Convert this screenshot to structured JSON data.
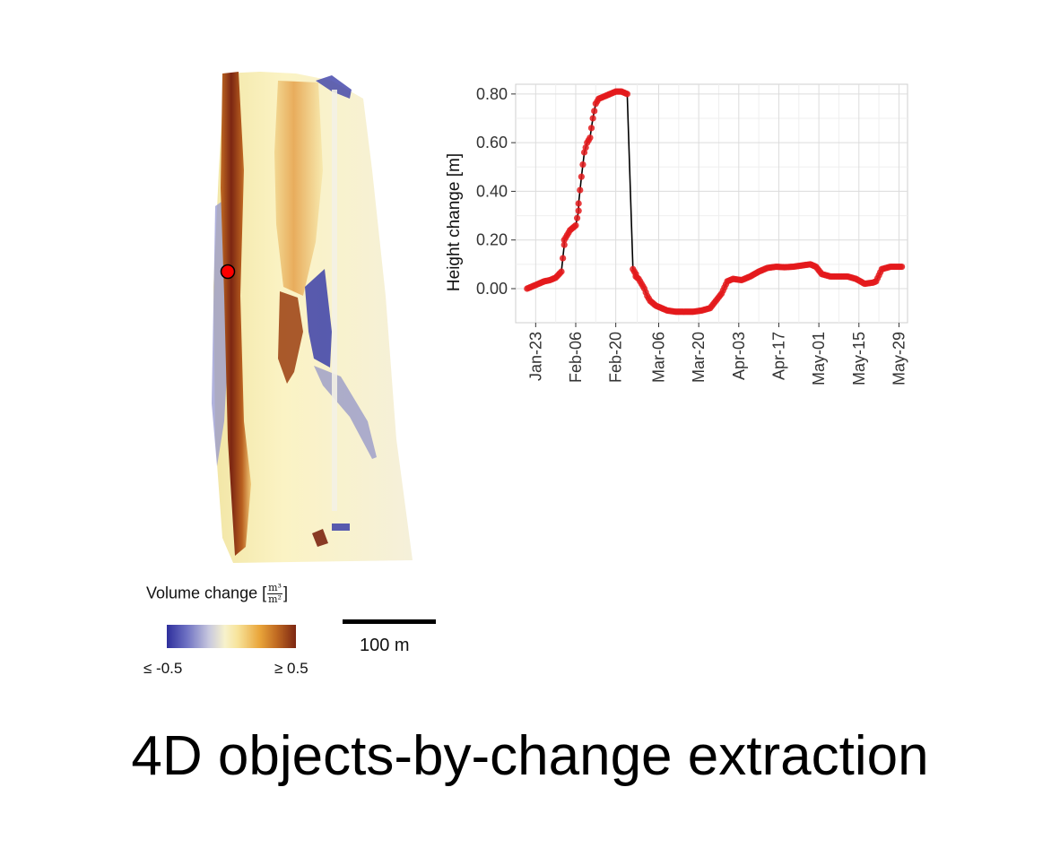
{
  "legend": {
    "title_prefix": "Volume change [",
    "unit_numerator": "m³",
    "unit_denominator": "m²",
    "title_suffix": "]",
    "min_label": "≤ -0.5",
    "max_label": "≥ 0.5",
    "colors": [
      "#2e2f9c",
      "#6c6fc2",
      "#c9c9de",
      "#f7f2cc",
      "#f7e39a",
      "#e9a53a",
      "#c06a22",
      "#7c2612"
    ]
  },
  "scale_bar": {
    "label": "100 m"
  },
  "caption": "4D objects-by-change extraction",
  "map": {
    "marker_color": "#ff0000"
  },
  "chart_data": {
    "type": "line",
    "ylabel": "Height change [m]",
    "xlabel": "",
    "ylim": [
      -0.14,
      0.84
    ],
    "yticks": [
      0.0,
      0.2,
      0.4,
      0.6,
      0.8
    ],
    "ytick_labels": [
      "0.00",
      "0.20",
      "0.40",
      "0.60",
      "0.80"
    ],
    "xticks": [
      "2000-01-23",
      "2000-02-06",
      "2000-02-20",
      "2000-03-06",
      "2000-03-20",
      "2000-04-03",
      "2000-04-17",
      "2000-05-01",
      "2000-05-15",
      "2000-05-29"
    ],
    "xtick_labels": [
      "Jan-23",
      "Feb-06",
      "Feb-20",
      "Mar-06",
      "Mar-20",
      "Apr-03",
      "Apr-17",
      "May-01",
      "May-15",
      "May-29"
    ],
    "xlim": [
      "2000-01-16",
      "2000-06-01"
    ],
    "grid": true,
    "point_color": "#e41a1c",
    "line_color": "#000000",
    "series": [
      {
        "x": [
          "2000-01-20",
          "2000-01-22",
          "2000-01-24",
          "2000-01-26",
          "2000-01-28",
          "2000-01-30",
          "2000-02-01",
          "2000-02-02",
          "2000-02-02",
          "2000-02-03",
          "2000-02-04",
          "2000-02-05",
          "2000-02-06",
          "2000-02-07",
          "2000-02-07",
          "2000-02-08",
          "2000-02-09",
          "2000-02-10",
          "2000-02-11",
          "2000-02-12",
          "2000-02-13",
          "2000-02-14",
          "2000-02-15",
          "2000-02-16",
          "2000-02-18",
          "2000-02-20",
          "2000-02-22",
          "2000-02-24",
          "2000-02-26",
          "2000-02-27",
          "2000-02-27",
          "2000-02-28",
          "2000-02-29",
          "2000-03-01",
          "2000-03-02",
          "2000-03-03",
          "2000-03-05",
          "2000-03-07",
          "2000-03-09",
          "2000-03-12",
          "2000-03-15",
          "2000-03-18",
          "2000-03-21",
          "2000-03-24",
          "2000-03-26",
          "2000-03-28",
          "2000-03-30",
          "2000-04-01",
          "2000-04-04",
          "2000-04-07",
          "2000-04-10",
          "2000-04-13",
          "2000-04-16",
          "2000-04-19",
          "2000-04-22",
          "2000-04-25",
          "2000-04-28",
          "2000-04-30",
          "2000-05-02",
          "2000-05-05",
          "2000-05-08",
          "2000-05-11",
          "2000-05-14",
          "2000-05-17",
          "2000-05-20",
          "2000-05-21",
          "2000-05-23",
          "2000-05-26",
          "2000-05-30"
        ],
        "y": [
          0.0,
          0.01,
          0.02,
          0.03,
          0.035,
          0.045,
          0.07,
          0.18,
          0.2,
          0.22,
          0.24,
          0.25,
          0.26,
          0.32,
          0.35,
          0.46,
          0.56,
          0.6,
          0.62,
          0.7,
          0.76,
          0.78,
          0.785,
          0.79,
          0.8,
          0.81,
          0.81,
          0.8,
          0.08,
          0.06,
          0.05,
          0.04,
          0.02,
          0.0,
          -0.03,
          -0.05,
          -0.07,
          -0.08,
          -0.09,
          -0.095,
          -0.095,
          -0.095,
          -0.09,
          -0.08,
          -0.05,
          -0.02,
          0.03,
          0.04,
          0.035,
          0.05,
          0.07,
          0.085,
          0.09,
          0.088,
          0.09,
          0.095,
          0.1,
          0.09,
          0.06,
          0.05,
          0.05,
          0.05,
          0.04,
          0.02,
          0.025,
          0.03,
          0.08,
          0.09,
          0.09
        ]
      }
    ]
  }
}
